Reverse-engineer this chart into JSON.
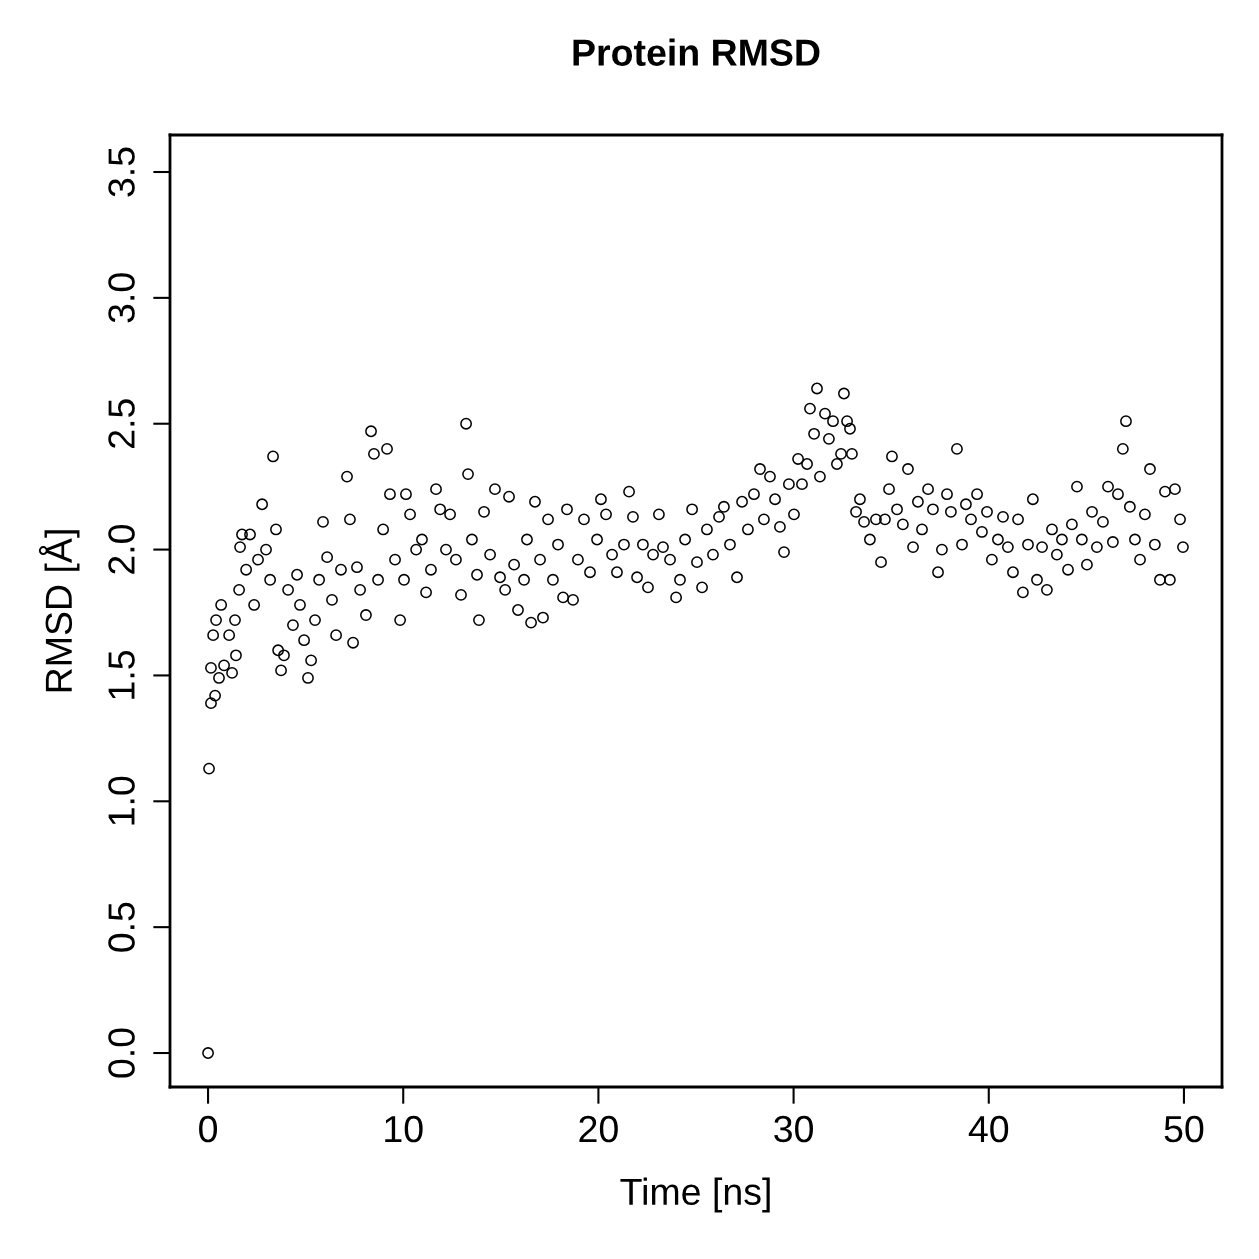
{
  "chart_data": {
    "type": "scatter",
    "title": "Protein RMSD",
    "xlabel": "Time [ns]",
    "ylabel": "RMSD [Å]",
    "xlim": [
      -1.95,
      51.95
    ],
    "ylim": [
      -0.135,
      3.647
    ],
    "xticks": [
      0,
      10,
      20,
      30,
      40,
      50
    ],
    "yticks": [
      {
        "value": 0,
        "label": "0.0"
      },
      {
        "value": 0.5,
        "label": "0.5"
      },
      {
        "value": 1,
        "label": "1.0"
      },
      {
        "value": 1.5,
        "label": "1.5"
      },
      {
        "value": 2,
        "label": "2.0"
      },
      {
        "value": 2.5,
        "label": "2.5"
      },
      {
        "value": 3,
        "label": "3.0"
      },
      {
        "value": 3.5,
        "label": "3.5"
      }
    ],
    "grid": false,
    "marker": "circle",
    "legend": false,
    "series": [
      {
        "color": "#000000",
        "x": [
          0,
          0.05,
          0.15,
          0.36,
          0.15,
          0.26,
          0.41,
          0.56,
          0.67,
          0.82,
          1.08,
          1.23,
          1.38,
          1.43,
          1.59,
          1.64,
          1.74,
          1.95,
          2.15,
          2.36,
          2.56,
          2.77,
          2.97,
          3.18,
          3.33,
          3.48,
          3.59,
          3.74,
          3.89,
          4.1,
          4.35,
          4.56,
          4.71,
          4.92,
          5.12,
          5.28,
          5.48,
          5.69,
          5.89,
          6.1,
          6.35,
          6.56,
          6.81,
          7.12,
          7.27,
          7.43,
          7.63,
          7.79,
          8.09,
          8.35,
          8.5,
          8.71,
          8.97,
          9.17,
          9.32,
          9.58,
          9.84,
          10.04,
          10.14,
          10.35,
          10.66,
          10.96,
          11.17,
          11.42,
          11.68,
          11.89,
          12.19,
          12.4,
          12.7,
          12.96,
          13.22,
          13.32,
          13.52,
          13.78,
          13.88,
          14.14,
          14.45,
          14.7,
          14.96,
          15.22,
          15.42,
          15.68,
          15.88,
          16.19,
          16.34,
          16.55,
          16.75,
          17.01,
          17.16,
          17.42,
          17.67,
          17.93,
          18.19,
          18.39,
          18.7,
          18.95,
          19.26,
          19.57,
          19.93,
          20.13,
          20.39,
          20.7,
          20.95,
          21.31,
          21.57,
          21.77,
          21.98,
          22.28,
          22.54,
          22.8,
          23.1,
          23.31,
          23.67,
          23.98,
          24.18,
          24.44,
          24.8,
          25.05,
          25.31,
          25.56,
          25.87,
          26.18,
          26.43,
          26.74,
          27.1,
          27.36,
          27.66,
          27.97,
          28.28,
          28.48,
          28.79,
          29.05,
          29.3,
          29.51,
          29.76,
          30.02,
          30.23,
          30.43,
          30.69,
          30.84,
          31.05,
          31.2,
          31.35,
          31.61,
          31.81,
          32.02,
          32.22,
          32.43,
          32.58,
          32.74,
          32.89,
          32.99,
          33.2,
          33.4,
          33.61,
          33.91,
          34.22,
          34.48,
          34.68,
          34.89,
          35.04,
          35.3,
          35.6,
          35.86,
          36.12,
          36.37,
          36.58,
          36.89,
          37.14,
          37.4,
          37.6,
          37.86,
          38.06,
          38.37,
          38.63,
          38.83,
          39.09,
          39.4,
          39.65,
          39.91,
          40.16,
          40.47,
          40.73,
          40.98,
          41.24,
          41.5,
          41.75,
          42.01,
          42.26,
          42.47,
          42.73,
          42.98,
          43.24,
          43.49,
          43.75,
          44.06,
          44.26,
          44.52,
          44.77,
          45.03,
          45.29,
          45.54,
          45.85,
          46.11,
          46.36,
          46.62,
          46.87,
          47.03,
          47.23,
          47.49,
          47.75,
          48.0,
          48.26,
          48.51,
          48.77,
          49.03,
          49.28,
          49.54,
          49.8,
          49.95
        ],
        "values": [
          0,
          1.13,
          1.39,
          1.42,
          1.53,
          1.66,
          1.72,
          1.49,
          1.78,
          1.54,
          1.66,
          1.51,
          1.72,
          1.58,
          1.84,
          2.01,
          2.06,
          1.92,
          2.06,
          1.78,
          1.96,
          2.18,
          2.0,
          1.88,
          2.37,
          2.08,
          1.6,
          1.52,
          1.58,
          1.84,
          1.7,
          1.9,
          1.78,
          1.64,
          1.49,
          1.56,
          1.72,
          1.88,
          2.11,
          1.97,
          1.8,
          1.66,
          1.92,
          2.29,
          2.12,
          1.63,
          1.93,
          1.84,
          1.74,
          2.47,
          2.38,
          1.88,
          2.08,
          2.4,
          2.22,
          1.96,
          1.72,
          1.88,
          2.22,
          2.14,
          2.0,
          2.04,
          1.83,
          1.92,
          2.24,
          2.16,
          2.0,
          2.14,
          1.96,
          1.82,
          2.5,
          2.3,
          2.04,
          1.9,
          1.72,
          2.15,
          1.98,
          2.24,
          1.89,
          1.84,
          2.21,
          1.94,
          1.76,
          1.88,
          2.04,
          1.71,
          2.19,
          1.96,
          1.73,
          2.12,
          1.88,
          2.02,
          1.81,
          2.16,
          1.8,
          1.96,
          2.12,
          1.91,
          2.04,
          2.2,
          2.14,
          1.98,
          1.91,
          2.02,
          2.23,
          2.13,
          1.89,
          2.02,
          1.85,
          1.98,
          2.14,
          2.01,
          1.96,
          1.81,
          1.88,
          2.04,
          2.16,
          1.95,
          1.85,
          2.08,
          1.98,
          2.13,
          2.17,
          2.02,
          1.89,
          2.19,
          2.08,
          2.22,
          2.32,
          2.12,
          2.29,
          2.2,
          2.09,
          1.99,
          2.26,
          2.14,
          2.36,
          2.26,
          2.34,
          2.56,
          2.46,
          2.64,
          2.29,
          2.54,
          2.44,
          2.51,
          2.34,
          2.38,
          2.62,
          2.51,
          2.48,
          2.38,
          2.15,
          2.2,
          2.11,
          2.04,
          2.12,
          1.95,
          2.12,
          2.24,
          2.37,
          2.16,
          2.1,
          2.32,
          2.01,
          2.19,
          2.08,
          2.24,
          2.16,
          1.91,
          2.0,
          2.22,
          2.15,
          2.4,
          2.02,
          2.18,
          2.12,
          2.22,
          2.07,
          2.15,
          1.96,
          2.04,
          2.13,
          2.01,
          1.91,
          2.12,
          1.83,
          2.02,
          2.2,
          1.88,
          2.01,
          1.84,
          2.08,
          1.98,
          2.04,
          1.92,
          2.1,
          2.25,
          2.04,
          1.94,
          2.15,
          2.01,
          2.11,
          2.25,
          2.03,
          2.22,
          2.4,
          2.51,
          2.17,
          2.04,
          1.96,
          2.14,
          2.32,
          2.02,
          1.88,
          2.23,
          1.88,
          2.24,
          2.12,
          2.01
        ]
      }
    ]
  }
}
